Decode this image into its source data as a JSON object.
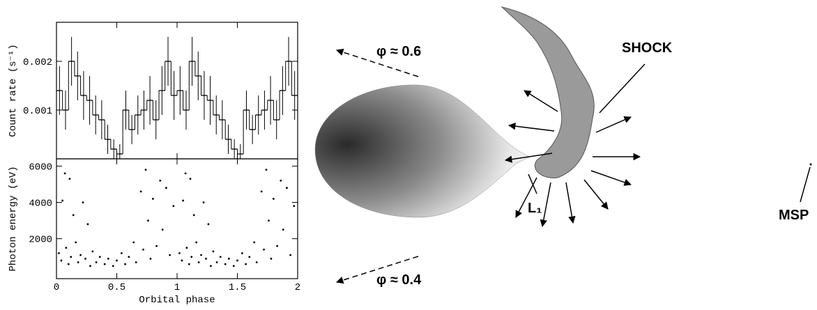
{
  "chart_data": [
    {
      "type": "histogram",
      "ylabel": "Count rate (s⁻¹)",
      "bins": [
        0,
        0.05,
        0.1,
        0.15,
        0.2,
        0.25,
        0.3,
        0.35,
        0.4,
        0.45,
        0.5,
        0.55,
        0.6,
        0.65,
        0.7,
        0.75,
        0.8,
        0.85,
        0.9,
        0.95,
        1,
        1.05,
        1.1,
        1.15,
        1.2,
        1.25,
        1.3,
        1.35,
        1.4,
        1.45,
        1.5,
        1.55,
        1.6,
        1.65,
        1.7,
        1.75,
        1.8,
        1.85,
        1.9,
        1.95,
        2
      ],
      "values": [
        0.0014,
        0.001,
        0.002,
        0.0017,
        0.0013,
        0.0012,
        0.0009,
        0.0008,
        0.0004,
        0.0002,
        0.0001,
        0.001,
        0.0006,
        0.0009,
        0.001,
        0.0012,
        0.0008,
        0.0014,
        0.002,
        0.0013,
        0.0014,
        0.001,
        0.002,
        0.0017,
        0.0013,
        0.0012,
        0.0009,
        0.0008,
        0.0004,
        0.0002,
        0.0001,
        0.001,
        0.0006,
        0.0009,
        0.001,
        0.0012,
        0.0008,
        0.0014,
        0.002,
        0.0013
      ],
      "errors": [
        0.0005,
        0.0004,
        0.0005,
        0.0005,
        0.0005,
        0.0005,
        0.0004,
        0.0004,
        0.0003,
        0.0002,
        0.0002,
        0.0004,
        0.0003,
        0.0004,
        0.0004,
        0.0005,
        0.0004,
        0.0005,
        0.0005,
        0.0005,
        0.0005,
        0.0004,
        0.0005,
        0.0005,
        0.0005,
        0.0005,
        0.0004,
        0.0004,
        0.0003,
        0.0002,
        0.0002,
        0.0004,
        0.0003,
        0.0004,
        0.0004,
        0.0005,
        0.0004,
        0.0005,
        0.0005,
        0.0005
      ],
      "color": "#000000",
      "xlim": [
        0,
        2
      ],
      "ylim": [
        0,
        0.0028
      ],
      "yticks": [
        0.001,
        0.002
      ]
    },
    {
      "type": "scatter",
      "xlabel": "Orbital phase",
      "ylabel": "Photon energy (eV)",
      "color": "#000000",
      "xlim": [
        0,
        2
      ],
      "xticks": [
        0,
        0.5,
        1,
        1.5,
        2
      ],
      "ylim": [
        -200,
        6400
      ],
      "yticks": [
        2000,
        4000,
        6000
      ],
      "x": [
        0.02,
        0.04,
        0.05,
        0.07,
        0.08,
        0.1,
        0.11,
        0.12,
        0.14,
        0.16,
        0.18,
        0.2,
        0.22,
        0.24,
        0.26,
        0.28,
        0.3,
        0.33,
        0.36,
        0.4,
        0.43,
        0.47,
        0.5,
        0.54,
        0.57,
        0.6,
        0.64,
        0.66,
        0.7,
        0.72,
        0.74,
        0.76,
        0.78,
        0.8,
        0.83,
        0.86,
        0.88,
        0.91,
        0.94,
        0.97,
        1.02,
        1.04,
        1.05,
        1.07,
        1.08,
        1.1,
        1.11,
        1.12,
        1.14,
        1.16,
        1.18,
        1.2,
        1.22,
        1.24,
        1.26,
        1.28,
        1.3,
        1.33,
        1.36,
        1.4,
        1.43,
        1.47,
        1.5,
        1.54,
        1.57,
        1.6,
        1.64,
        1.66,
        1.7,
        1.72,
        1.74,
        1.76,
        1.78,
        1.8,
        1.83,
        1.86,
        1.88,
        1.91,
        1.94,
        1.97
      ],
      "y": [
        1200,
        800,
        4100,
        5600,
        1500,
        600,
        5300,
        1000,
        3300,
        1800,
        700,
        1100,
        4000,
        900,
        2800,
        500,
        1300,
        700,
        1000,
        600,
        900,
        500,
        800,
        1200,
        600,
        1000,
        1800,
        700,
        4600,
        1400,
        5800,
        3000,
        900,
        4200,
        1600,
        5200,
        2500,
        4800,
        1100,
        3800,
        1200,
        800,
        4100,
        5600,
        1500,
        600,
        5300,
        1000,
        3300,
        1800,
        700,
        1100,
        4000,
        900,
        2800,
        500,
        1300,
        700,
        1000,
        600,
        900,
        500,
        800,
        1200,
        600,
        1000,
        1800,
        700,
        4600,
        1400,
        5800,
        3000,
        900,
        4200,
        1600,
        5200,
        2500,
        4800,
        1100,
        3800
      ]
    }
  ],
  "diagram": {
    "phase_top": "φ ≈ 0.6",
    "phase_bottom": "φ ≈ 0.4",
    "shock": "SHOCK",
    "l1": "L₁",
    "msp": "MSP"
  }
}
